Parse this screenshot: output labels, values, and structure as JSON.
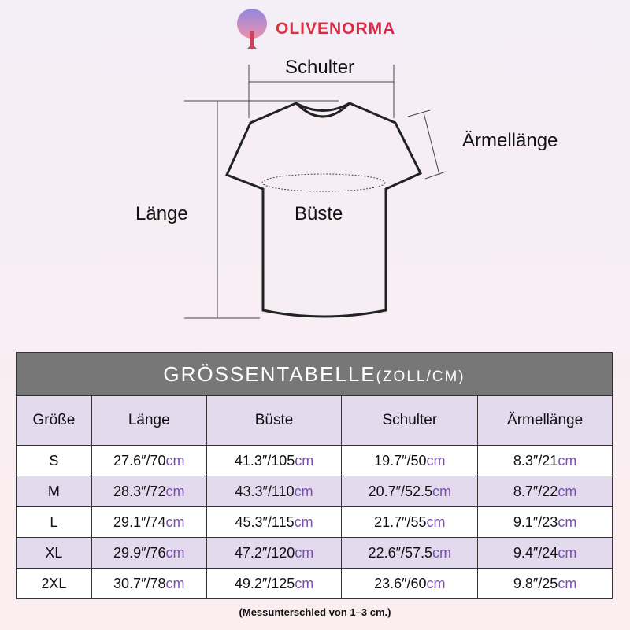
{
  "brand": {
    "name": "OLIVENORMA"
  },
  "diagram": {
    "shoulder": "Schulter",
    "sleeve": "Ärmellänge",
    "length": "Länge",
    "bust": "Büste"
  },
  "table": {
    "title": "GRÖSSENTABELLE",
    "title_unit": "(ZOLL/CM)",
    "headers": [
      "Größe",
      "Länge",
      "Büste",
      "Schulter",
      "Ärmellänge"
    ],
    "unit": "cm",
    "rows": [
      {
        "size": "S",
        "laenge": "27.6″/70",
        "bueste": "41.3″/105",
        "schulter": "19.7″/50",
        "aermel": "8.3″/21"
      },
      {
        "size": "M",
        "laenge": "28.3″/72",
        "bueste": "43.3″/110",
        "schulter": "20.7″/52.5",
        "aermel": "8.7″/22"
      },
      {
        "size": "L",
        "laenge": "29.1″/74",
        "bueste": "45.3″/115",
        "schulter": "21.7″/55",
        "aermel": "9.1″/23"
      },
      {
        "size": "XL",
        "laenge": "29.9″/76",
        "bueste": "47.2″/120",
        "schulter": "22.6″/57.5",
        "aermel": "9.4″/24"
      },
      {
        "size": "2XL",
        "laenge": "30.7″/78",
        "bueste": "49.2″/125",
        "schulter": "23.6″/60",
        "aermel": "9.8″/25"
      }
    ]
  },
  "note": "(Messunterschied von 1–3 cm.)"
}
